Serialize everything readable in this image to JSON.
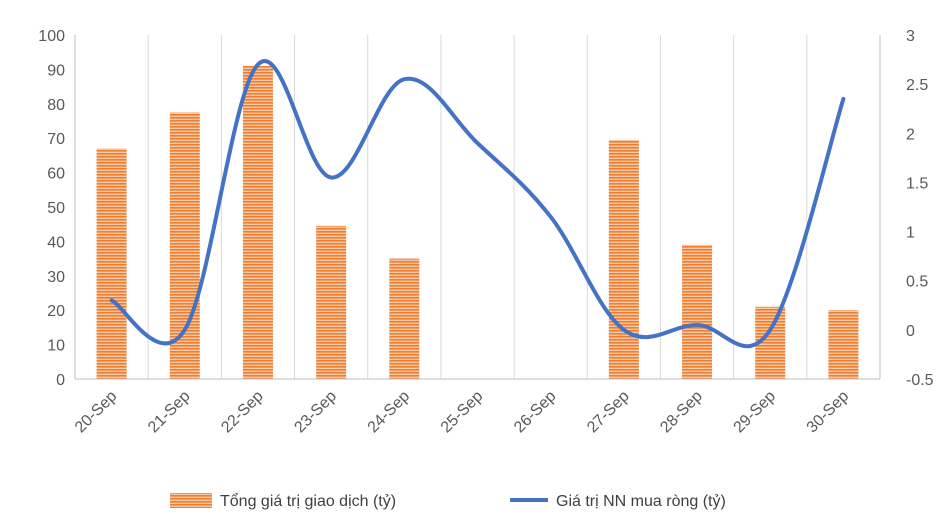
{
  "chart_data": {
    "type": "bar",
    "categories": [
      "20-Sep",
      "21-Sep",
      "22-Sep",
      "23-Sep",
      "24-Sep",
      "25-Sep",
      "26-Sep",
      "27-Sep",
      "28-Sep",
      "29-Sep",
      "30-Sep"
    ],
    "series": [
      {
        "name": "Tổng giá trị giao dịch (tỷ)",
        "type": "bar",
        "axis": "left",
        "values": [
          67,
          77.5,
          91,
          44.5,
          35,
          0,
          0,
          69.5,
          39,
          21,
          20
        ],
        "color": "#ED7D31"
      },
      {
        "name": "Giá trị NN mua ròng (tỷ)",
        "type": "line",
        "axis": "right",
        "smooth": true,
        "values": [
          0.3,
          0.0,
          2.7,
          1.55,
          2.55,
          1.9,
          1.15,
          0.0,
          0.05,
          0.0,
          2.35
        ],
        "color": "#4472C4"
      }
    ],
    "ylim_left": [
      0,
      100
    ],
    "yticks_left": [
      "0",
      "10",
      "20",
      "30",
      "40",
      "50",
      "60",
      "70",
      "80",
      "90",
      "100"
    ],
    "ylim_right": [
      -0.5,
      3
    ],
    "yticks_right": [
      "-0.5",
      "0",
      "0.5",
      "1",
      "1.5",
      "2",
      "2.5",
      "3"
    ],
    "grid": "vertical",
    "legend": "bottom"
  }
}
